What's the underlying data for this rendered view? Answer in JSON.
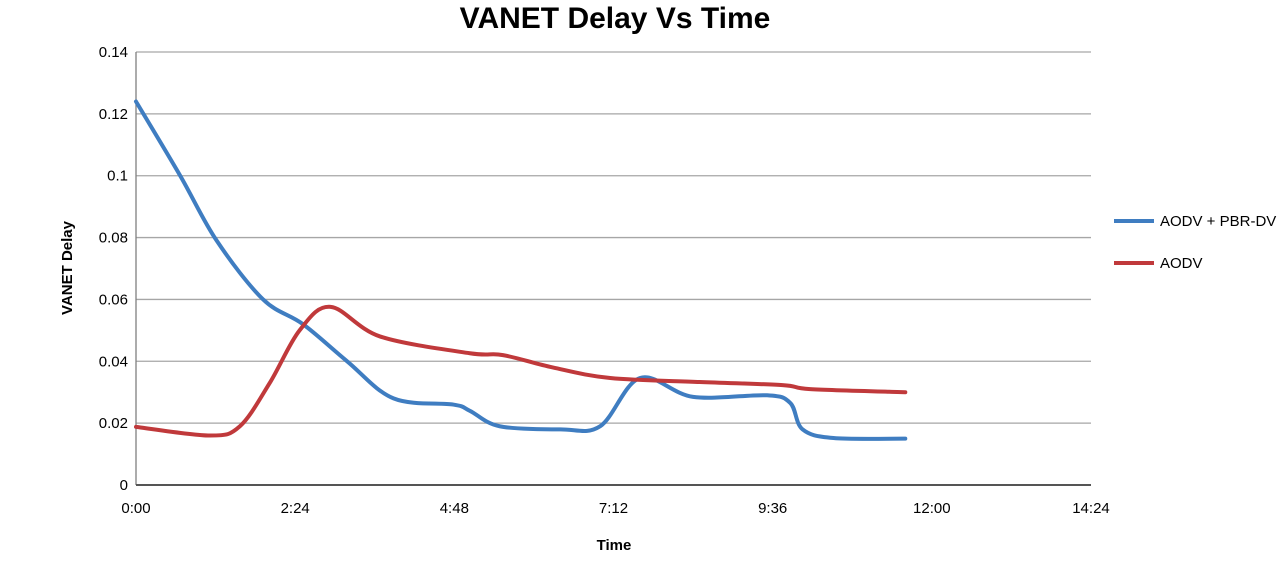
{
  "chart_data": {
    "type": "line",
    "title": "VANET Delay Vs Time",
    "xlabel": "Time",
    "ylabel": "VANET Delay",
    "xlim": [
      "0:00",
      "14:24"
    ],
    "ylim": [
      0,
      0.14
    ],
    "x_ticks": [
      "0:00",
      "2:24",
      "4:48",
      "7:12",
      "9:36",
      "12:00",
      "14:24"
    ],
    "y_ticks": [
      "0",
      "0.02",
      "0.04",
      "0.06",
      "0.08",
      "0.1",
      "0.12",
      "0.14"
    ],
    "grid": "horizontal",
    "legend": "right",
    "series": [
      {
        "name": "AODV + PBR-DV",
        "color": "#3f7dc1",
        "x": [
          "0:00",
          "0:40",
          "1:13",
          "1:55",
          "2:31",
          "3:11",
          "3:53",
          "4:47",
          "5:02",
          "5:29",
          "6:24",
          "7:00",
          "7:36",
          "8:24",
          "9:31",
          "9:52",
          "10:03",
          "10:31",
          "11:36"
        ],
        "y": [
          0.124,
          0.1,
          0.079,
          0.06,
          0.052,
          0.04,
          0.028,
          0.026,
          0.024,
          0.019,
          0.018,
          0.019,
          0.0346,
          0.0285,
          0.029,
          0.0265,
          0.018,
          0.0152,
          0.015
        ]
      },
      {
        "name": "AODV",
        "color": "#c0393b",
        "x": [
          "0:00",
          "1:07",
          "1:34",
          "2:01",
          "2:28",
          "2:56",
          "3:41",
          "5:02",
          "5:32",
          "6:17",
          "7:09",
          "8:30",
          "9:45",
          "10:10",
          "11:36"
        ],
        "y": [
          0.0188,
          0.016,
          0.019,
          0.033,
          0.05,
          0.0576,
          0.048,
          0.0426,
          0.042,
          0.038,
          0.0346,
          0.0333,
          0.0323,
          0.031,
          0.03
        ]
      }
    ]
  }
}
